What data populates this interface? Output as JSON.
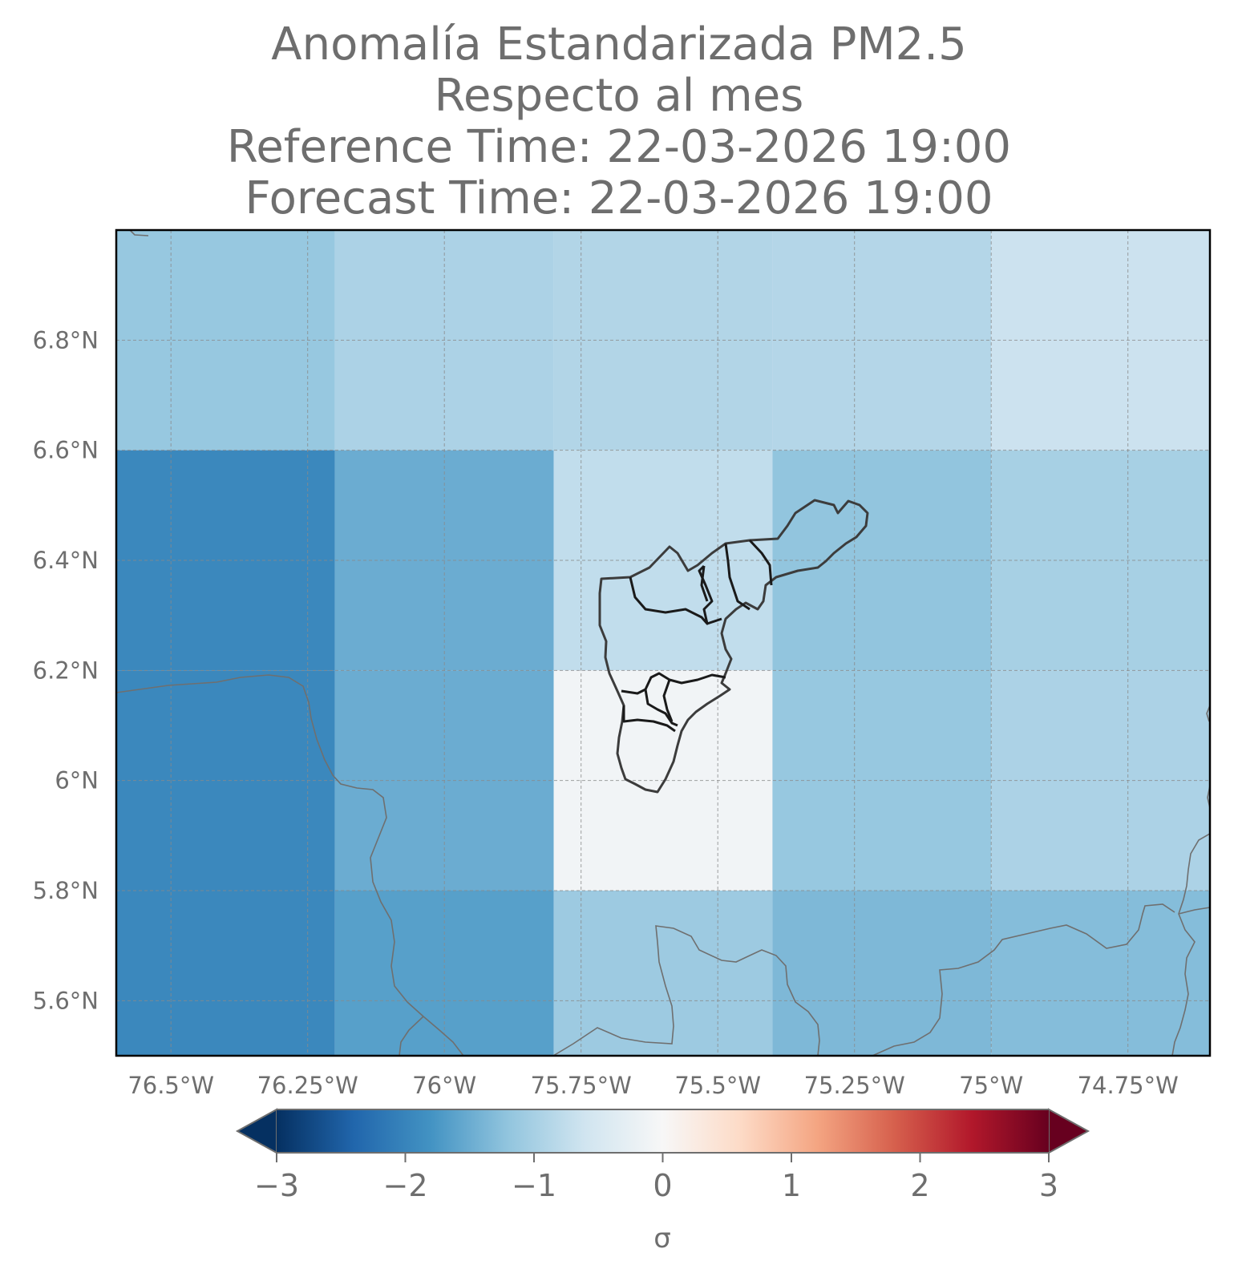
{
  "title": {
    "line1": "Anomalía Estandarizada PM2.5",
    "line2": "Respecto al mes",
    "line3": "Reference Time: 22-03-2026 19:00",
    "line4": "Forecast Time: 22-03-2026 19:00"
  },
  "map": {
    "lon_range": [
      -76.6,
      -74.6
    ],
    "lat_range": [
      5.5,
      7.0
    ],
    "x_ticks": [
      {
        "value": -76.5,
        "label": "76.5°W"
      },
      {
        "value": -76.25,
        "label": "76.25°W"
      },
      {
        "value": -76.0,
        "label": "76°W"
      },
      {
        "value": -75.75,
        "label": "75.75°W"
      },
      {
        "value": -75.5,
        "label": "75.5°W"
      },
      {
        "value": -75.25,
        "label": "75.25°W"
      },
      {
        "value": -75.0,
        "label": "75°W"
      },
      {
        "value": -74.75,
        "label": "74.75°W"
      }
    ],
    "y_ticks": [
      {
        "value": 6.8,
        "label": "6.8°N"
      },
      {
        "value": 6.6,
        "label": "6.6°N"
      },
      {
        "value": 6.4,
        "label": "6.4°N"
      },
      {
        "value": 6.2,
        "label": "6.2°N"
      },
      {
        "value": 6.0,
        "label": "6°N"
      },
      {
        "value": 5.8,
        "label": "5.8°N"
      },
      {
        "value": 5.6,
        "label": "5.6°N"
      }
    ],
    "grid": true,
    "cells": [
      {
        "lon0": -76.6,
        "lon1": -76.2,
        "lat0": 6.6,
        "lat1": 7.0,
        "value": -1.15
      },
      {
        "lon0": -76.2,
        "lon1": -75.8,
        "lat0": 6.6,
        "lat1": 7.0,
        "value": -0.95
      },
      {
        "lon0": -75.8,
        "lon1": -75.4,
        "lat0": 6.6,
        "lat1": 7.0,
        "value": -0.9
      },
      {
        "lon0": -75.4,
        "lon1": -75.0,
        "lat0": 6.6,
        "lat1": 7.0,
        "value": -0.88
      },
      {
        "lon0": -75.0,
        "lon1": -74.6,
        "lat0": 6.6,
        "lat1": 7.0,
        "value": -0.65
      },
      {
        "lon0": -76.6,
        "lon1": -76.2,
        "lat0": 6.2,
        "lat1": 6.6,
        "value": -1.95
      },
      {
        "lon0": -76.2,
        "lon1": -75.8,
        "lat0": 6.2,
        "lat1": 6.6,
        "value": -1.5
      },
      {
        "lon0": -75.8,
        "lon1": -75.4,
        "lat0": 6.2,
        "lat1": 6.6,
        "value": -0.75
      },
      {
        "lon0": -75.4,
        "lon1": -75.0,
        "lat0": 6.2,
        "lat1": 6.6,
        "value": -1.2
      },
      {
        "lon0": -75.0,
        "lon1": -74.6,
        "lat0": 6.2,
        "lat1": 6.6,
        "value": -1.0
      },
      {
        "lon0": -76.6,
        "lon1": -76.2,
        "lat0": 5.8,
        "lat1": 6.2,
        "value": -1.95
      },
      {
        "lon0": -76.2,
        "lon1": -75.8,
        "lat0": 5.8,
        "lat1": 6.2,
        "value": -1.5
      },
      {
        "lon0": -75.8,
        "lon1": -75.4,
        "lat0": 5.8,
        "lat1": 6.2,
        "value": -0.1
      },
      {
        "lon0": -75.4,
        "lon1": -75.0,
        "lat0": 5.8,
        "lat1": 6.2,
        "value": -1.15
      },
      {
        "lon0": -75.0,
        "lon1": -74.6,
        "lat0": 5.8,
        "lat1": 6.2,
        "value": -0.95
      },
      {
        "lon0": -76.6,
        "lon1": -76.2,
        "lat0": 5.5,
        "lat1": 5.8,
        "value": -1.95
      },
      {
        "lon0": -76.2,
        "lon1": -75.8,
        "lat0": 5.5,
        "lat1": 5.8,
        "value": -1.65
      },
      {
        "lon0": -75.8,
        "lon1": -75.4,
        "lat0": 5.5,
        "lat1": 5.8,
        "value": -1.1
      },
      {
        "lon0": -75.4,
        "lon1": -75.0,
        "lat0": 5.5,
        "lat1": 5.8,
        "value": -1.35
      },
      {
        "lon0": -75.0,
        "lon1": -74.6,
        "lat0": 5.5,
        "lat1": 5.8,
        "value": -1.3
      }
    ],
    "colors": {
      "grid": "#8a8a8a",
      "boundary": "#6f6f6f",
      "municipality": "#1a1a1a",
      "frame": "#000000"
    }
  },
  "colorbar": {
    "label": "σ",
    "vmin": -3,
    "vmax": 3,
    "extend": "both",
    "colormap": "RdBu_r",
    "ticks": [
      {
        "value": -3,
        "label": "−3"
      },
      {
        "value": -2,
        "label": "−2"
      },
      {
        "value": -1,
        "label": "−1"
      },
      {
        "value": 0,
        "label": "0"
      },
      {
        "value": 1,
        "label": "1"
      },
      {
        "value": 2,
        "label": "2"
      },
      {
        "value": 3,
        "label": "3"
      }
    ],
    "stops": [
      "#053061",
      "#2166ac",
      "#4393c3",
      "#92c5de",
      "#d1e5f0",
      "#f7f7f7",
      "#fddbc7",
      "#f4a582",
      "#d6604d",
      "#b2182b",
      "#67001f"
    ]
  }
}
